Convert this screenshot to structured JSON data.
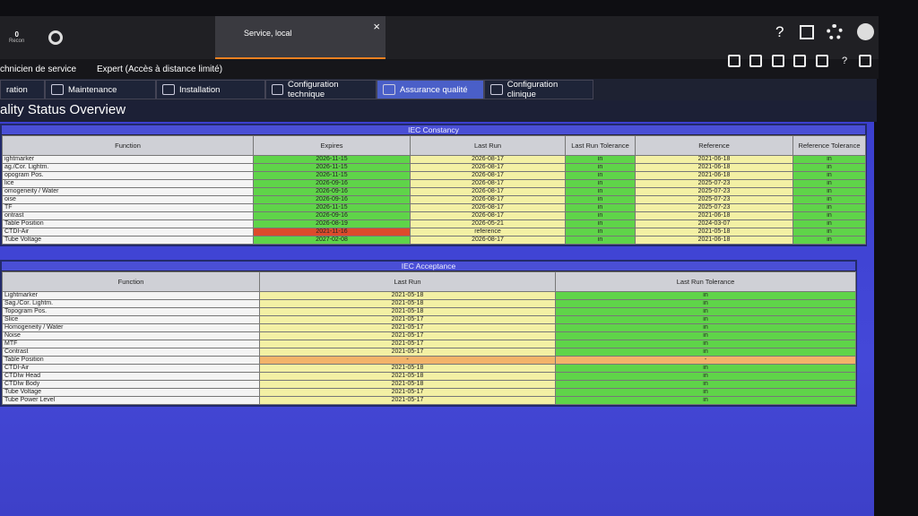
{
  "header": {
    "recon_count": "0",
    "recon_label": "Recon",
    "session_tab": "Service, local",
    "close": "×",
    "user_role": "chnicien de service",
    "access_level": "Expert (Accès à distance limité)",
    "help": "?"
  },
  "tabs": [
    "ration",
    "Maintenance",
    "Installation",
    "Configuration technique",
    "Assurance qualité",
    "Configuration clinique"
  ],
  "title": "ality Status Overview",
  "tables": [
    {
      "title": "IEC Constancy",
      "columns": [
        "Function",
        "Expires",
        "Last Run",
        "Last Run Tolerance",
        "Reference",
        "Reference Tolerance"
      ],
      "column_colors": [
        "#f4f4f4",
        "#5fd449",
        "#f3f0a4",
        "#5fd449",
        "#f3f0a4",
        "#5fd449"
      ],
      "cell_color_overrides": {
        "9.1": "#dd4a2c"
      },
      "rows": [
        [
          "ightmarker",
          "2026-11-15",
          "2026-08-17",
          "in",
          "2021-06-18",
          "in"
        ],
        [
          "ag./Cor. Lightm.",
          "2026-11-15",
          "2026-08-17",
          "in",
          "2021-06-18",
          "in"
        ],
        [
          "opogram Pos.",
          "2026-11-15",
          "2026-08-17",
          "in",
          "2021-06-18",
          "in"
        ],
        [
          "lice",
          "2026-09-16",
          "2026-08-17",
          "in",
          "2025-07-23",
          "in"
        ],
        [
          "omogeneity / Water",
          "2026-09-16",
          "2026-08-17",
          "in",
          "2025-07-23",
          "in"
        ],
        [
          "oise",
          "2026-09-16",
          "2026-08-17",
          "in",
          "2025-07-23",
          "in"
        ],
        [
          "TF",
          "2026-11-15",
          "2026-08-17",
          "in",
          "2025-07-23",
          "in"
        ],
        [
          "ontrast",
          "2026-09-16",
          "2026-08-17",
          "in",
          "2021-06-18",
          "in"
        ],
        [
          "Table Position",
          "2026-08-19",
          "2026-05-21",
          "in",
          "2024-03-07",
          "in"
        ],
        [
          "CTDI-Air",
          "2021-11-16",
          "reference",
          "in",
          "2021-05-18",
          "in"
        ],
        [
          "Tube Voltage",
          "2027-02-08",
          "2026-08-17",
          "in",
          "2021-06-18",
          "in"
        ]
      ]
    },
    {
      "title": "IEC Acceptance",
      "columns": [
        "Function",
        "Last Run",
        "Last Run Tolerance"
      ],
      "column_colors": [
        "#f4f4f4",
        "#f3f0a4",
        "#5fd449"
      ],
      "cell_color_overrides": {
        "8.1": "#f2b36a",
        "8.2": "#f2b36a"
      },
      "rows": [
        [
          "Lightmarker",
          "2021-05-18",
          "in"
        ],
        [
          "Sag./Cor. Lightm.",
          "2021-05-18",
          "in"
        ],
        [
          "Topogram Pos.",
          "2021-05-18",
          "in"
        ],
        [
          "Slice",
          "2021-05-17",
          "in"
        ],
        [
          "Homogeneity / Water",
          "2021-05-17",
          "in"
        ],
        [
          "Noise",
          "2021-05-17",
          "in"
        ],
        [
          "MTF",
          "2021-05-17",
          "in"
        ],
        [
          "Contrast",
          "2021-05-17",
          "in"
        ],
        [
          "Table Position",
          "-",
          "-"
        ],
        [
          "CTDI-Air",
          "2021-05-18",
          "in"
        ],
        [
          "CTDIw Head",
          "2021-05-18",
          "in"
        ],
        [
          "CTDIw Body",
          "2021-05-18",
          "in"
        ],
        [
          "Tube Voltage",
          "2021-05-17",
          "in"
        ],
        [
          "Tube Power Level",
          "2021-05-17",
          "in"
        ]
      ]
    }
  ]
}
